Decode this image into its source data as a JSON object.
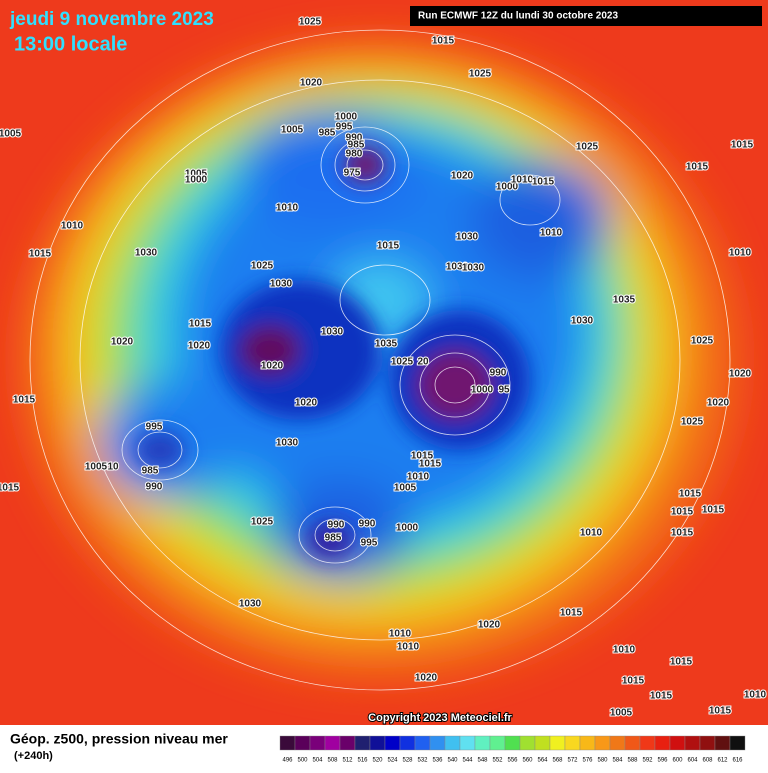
{
  "header": {
    "date": "jeudi 9 novembre 2023",
    "time": "13:00 locale",
    "run": "Run ECMWF 12Z du lundi 30 octobre 2023"
  },
  "footer": {
    "copyright": "Copyright 2023 Meteociel.fr",
    "label": "Géop. z500, pression niveau mer",
    "lead": "(+240h)"
  },
  "colorbar": {
    "values": [
      496,
      500,
      504,
      508,
      512,
      516,
      520,
      524,
      528,
      532,
      536,
      540,
      544,
      548,
      552,
      556,
      560,
      564,
      568,
      572,
      576,
      580,
      584,
      588,
      592,
      596,
      600,
      604,
      608,
      612,
      616
    ],
    "colors": [
      "#3a0a3a",
      "#5a005a",
      "#7a007a",
      "#a000a0",
      "#6a006a",
      "#202070",
      "#101098",
      "#0000c8",
      "#1030e0",
      "#2060f0",
      "#3090f0",
      "#40c0f0",
      "#60e0f0",
      "#60f0c0",
      "#60f090",
      "#50e050",
      "#a0e030",
      "#c0e020",
      "#f0f020",
      "#f8d820",
      "#f8b818",
      "#f89818",
      "#f07818",
      "#f05818",
      "#f03818",
      "#e82010",
      "#d01010",
      "#b01010",
      "#901010",
      "#601010",
      "#101010"
    ]
  },
  "isobar_labels": [
    1025,
    1015,
    1025,
    1020,
    1005,
    1005,
    1000,
    995,
    985,
    990,
    985,
    980,
    975,
    1020,
    1025,
    1015,
    1015,
    1000,
    1010,
    1015,
    1005,
    1000,
    1010,
    1010,
    1030,
    1015,
    1015,
    1030,
    1030,
    1030,
    1010,
    1010,
    1025,
    1030,
    1035,
    1015,
    1030,
    1030,
    1020,
    1020,
    1035,
    1025,
    1020,
    1025,
    20,
    990,
    1020,
    1000,
    95,
    1015,
    1020,
    1020,
    995,
    1025,
    1030,
    1015,
    1015,
    1010,
    1005,
    10,
    985,
    990,
    1015,
    1005,
    1015,
    1015,
    1015,
    1025,
    990,
    990,
    1000,
    985,
    995,
    1010,
    1015,
    1030,
    1015,
    1020,
    1010,
    1010,
    1010,
    1015,
    1020,
    1015,
    1015,
    1005,
    1010,
    1015
  ]
}
